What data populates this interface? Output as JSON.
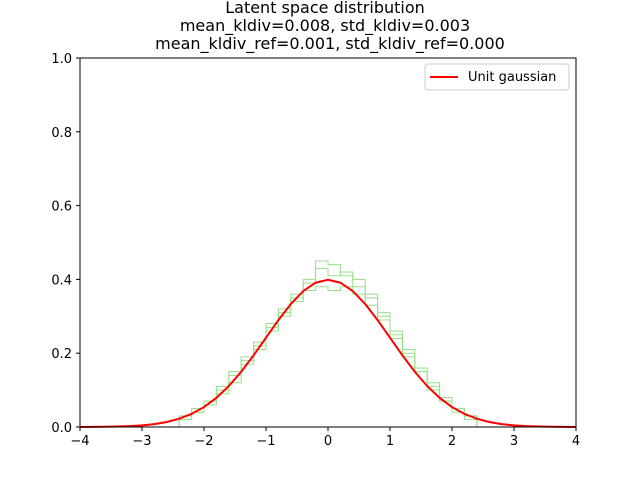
{
  "chart_data": {
    "type": "line",
    "title_lines": [
      "Latent space distribution",
      "mean_kldiv=0.008, std_kldiv=0.003",
      "mean_kldiv_ref=0.001, std_kldiv_ref=0.000"
    ],
    "xlabel": "",
    "ylabel": "",
    "xlim": [
      -4,
      4
    ],
    "ylim": [
      0,
      1.0
    ],
    "x_ticks": [
      "−4",
      "−3",
      "−2",
      "−1",
      "0",
      "1",
      "2",
      "3",
      "4"
    ],
    "x_tick_values": [
      -4,
      -3,
      -2,
      -1,
      0,
      1,
      2,
      3,
      4
    ],
    "y_ticks": [
      "0.0",
      "0.2",
      "0.4",
      "0.6",
      "0.8",
      "1.0"
    ],
    "y_tick_values": [
      0,
      0.2,
      0.4,
      0.6,
      0.8,
      1.0
    ],
    "grid": false,
    "legend": {
      "placement": "top-right",
      "entries": [
        {
          "label": "Unit gaussian",
          "color": "#ff0000"
        }
      ]
    },
    "series": [
      {
        "name": "Unit gaussian",
        "kind": "line",
        "color": "#ff0000",
        "x": [
          -4.0,
          -3.8,
          -3.6,
          -3.4,
          -3.2,
          -3.0,
          -2.8,
          -2.6,
          -2.4,
          -2.2,
          -2.0,
          -1.8,
          -1.6,
          -1.4,
          -1.2,
          -1.0,
          -0.8,
          -0.6,
          -0.4,
          -0.2,
          0.0,
          0.2,
          0.4,
          0.6,
          0.8,
          1.0,
          1.2,
          1.4,
          1.6,
          1.8,
          2.0,
          2.2,
          2.4,
          2.6,
          2.8,
          3.0,
          3.2,
          3.4,
          3.6,
          3.8,
          4.0
        ],
        "y": [
          0.0001,
          0.0003,
          0.0006,
          0.0012,
          0.0024,
          0.0044,
          0.0079,
          0.0136,
          0.0224,
          0.0355,
          0.054,
          0.079,
          0.1109,
          0.1497,
          0.1942,
          0.242,
          0.2897,
          0.3332,
          0.3683,
          0.391,
          0.3989,
          0.391,
          0.3683,
          0.3332,
          0.2897,
          0.242,
          0.1942,
          0.1497,
          0.1109,
          0.079,
          0.054,
          0.0355,
          0.0224,
          0.0136,
          0.0079,
          0.0044,
          0.0024,
          0.0012,
          0.0006,
          0.0003,
          0.0001
        ]
      }
    ],
    "histograms": [
      {
        "kind": "step-histogram",
        "color": "#98df8a",
        "bin_edges": [
          -2.4,
          -2.2,
          -2.0,
          -1.8,
          -1.6,
          -1.4,
          -1.2,
          -1.0,
          -0.8,
          -0.6,
          -0.4,
          -0.2,
          0.0,
          0.2,
          0.4,
          0.6,
          0.8,
          1.0,
          1.2,
          1.4,
          1.6,
          1.8,
          2.0,
          2.2,
          2.4
        ],
        "density": [
          0.02,
          0.04,
          0.06,
          0.09,
          0.12,
          0.17,
          0.21,
          0.27,
          0.31,
          0.36,
          0.39,
          0.43,
          0.41,
          0.42,
          0.4,
          0.35,
          0.3,
          0.24,
          0.19,
          0.15,
          0.1,
          0.07,
          0.05,
          0.03
        ]
      },
      {
        "kind": "step-histogram",
        "color": "#98df8a",
        "bin_edges": [
          -2.4,
          -2.2,
          -2.0,
          -1.8,
          -1.6,
          -1.4,
          -1.2,
          -1.0,
          -0.8,
          -0.6,
          -0.4,
          -0.2,
          0.0,
          0.2,
          0.4,
          0.6,
          0.8,
          1.0,
          1.2,
          1.4,
          1.6,
          1.8,
          2.0,
          2.2,
          2.4
        ],
        "density": [
          0.03,
          0.05,
          0.07,
          0.1,
          0.14,
          0.19,
          0.23,
          0.28,
          0.32,
          0.35,
          0.37,
          0.38,
          0.37,
          0.38,
          0.36,
          0.33,
          0.29,
          0.25,
          0.2,
          0.16,
          0.12,
          0.08,
          0.05,
          0.03
        ]
      },
      {
        "kind": "step-histogram",
        "color": "#98df8a",
        "bin_edges": [
          -2.4,
          -2.2,
          -2.0,
          -1.8,
          -1.6,
          -1.4,
          -1.2,
          -1.0,
          -0.8,
          -0.6,
          -0.4,
          -0.2,
          0.0,
          0.2,
          0.4,
          0.6,
          0.8,
          1.0,
          1.2,
          1.4,
          1.6,
          1.8,
          2.0,
          2.2,
          2.4
        ],
        "density": [
          0.02,
          0.04,
          0.07,
          0.11,
          0.15,
          0.18,
          0.22,
          0.26,
          0.3,
          0.34,
          0.4,
          0.45,
          0.44,
          0.41,
          0.38,
          0.36,
          0.31,
          0.26,
          0.21,
          0.15,
          0.11,
          0.07,
          0.04,
          0.02
        ]
      }
    ]
  }
}
